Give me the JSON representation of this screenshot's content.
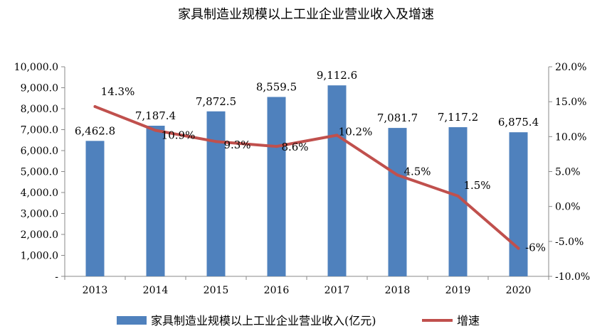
{
  "chart_data": {
    "type": "bar",
    "title": "家具制造业规模以上工业企业营业收入及增速",
    "categories": [
      "2013",
      "2014",
      "2015",
      "2016",
      "2017",
      "2018",
      "2019",
      "2020"
    ],
    "series": [
      {
        "name": "家具制造业规模以上工业企业营业收入(亿元)",
        "type": "bar",
        "axis": "left",
        "color": "#4f81bd",
        "values": [
          6462.8,
          7187.4,
          7872.5,
          8559.5,
          9112.6,
          7081.7,
          7117.2,
          6875.4
        ],
        "labels": [
          "6,462.8",
          "7,187.4",
          "7,872.5",
          "8,559.5",
          "9,112.6",
          "7,081.7",
          "7,117.2",
          "6,875.4"
        ]
      },
      {
        "name": "增速",
        "type": "line",
        "axis": "right",
        "color": "#c0504d",
        "values": [
          14.3,
          10.9,
          9.3,
          8.6,
          10.2,
          4.5,
          1.5,
          -6
        ],
        "labels": [
          "14.3%",
          "10.9%",
          "9.3%",
          "8.6%",
          "10.2%",
          "4.5%",
          "1.5%",
          "-6%"
        ]
      }
    ],
    "left_axis": {
      "ylim": [
        0,
        10000
      ],
      "ticks": [
        "-",
        "1,000.0",
        "2,000.0",
        "3,000.0",
        "4,000.0",
        "5,000.0",
        "6,000.0",
        "7,000.0",
        "8,000.0",
        "9,000.0",
        "10,000.0"
      ]
    },
    "right_axis": {
      "ylim": [
        -10,
        20
      ],
      "ticks": [
        "-10.0%",
        "-5.0%",
        "0.0%",
        "5.0%",
        "10.0%",
        "15.0%",
        "20.0%"
      ]
    },
    "grid": false,
    "legend_position": "bottom"
  }
}
